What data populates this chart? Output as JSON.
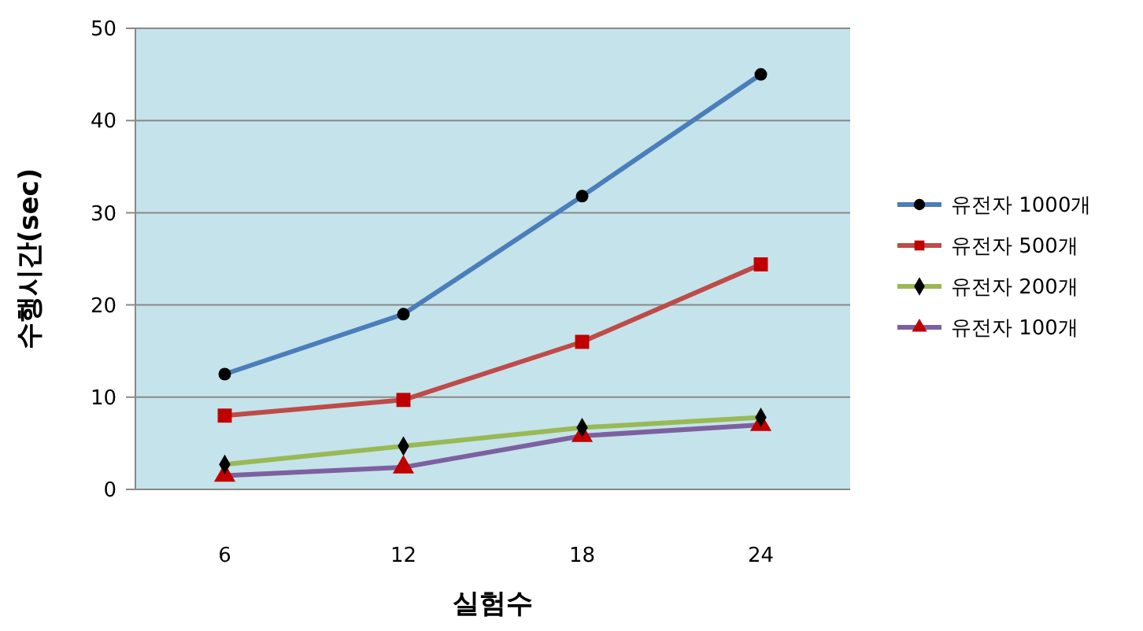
{
  "chart_data": {
    "type": "line",
    "xlabel": "실험수",
    "ylabel": "수행시간(sec)",
    "categories": [
      "6",
      "12",
      "18",
      "24"
    ],
    "ylim": [
      0,
      50
    ],
    "yticks": [
      0,
      10,
      20,
      30,
      40,
      50
    ],
    "grid": "y",
    "legend": "right",
    "line_style": "solid",
    "series": [
      {
        "name": "유전자 1000개",
        "color": "#4a7ebb",
        "marker": "circle",
        "values": [
          12.5,
          19,
          31.8,
          45
        ]
      },
      {
        "name": "유전자 500개",
        "color": "#be4b48",
        "marker": "square",
        "values": [
          8,
          9.7,
          16,
          24.4
        ]
      },
      {
        "name": "유전자 200개",
        "color": "#98b954",
        "marker": "diamond",
        "values": [
          2.7,
          4.7,
          6.7,
          7.8
        ]
      },
      {
        "name": "유전자 100개",
        "color": "#7d60a0",
        "marker": "triangle",
        "values": [
          1.5,
          2.4,
          5.8,
          7
        ]
      }
    ]
  }
}
